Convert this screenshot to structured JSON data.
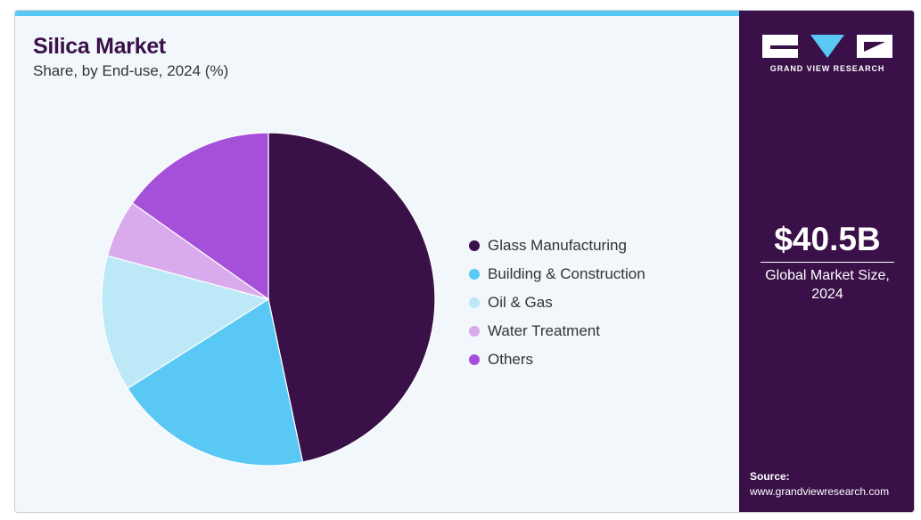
{
  "header": {
    "title": "Silica Market",
    "subtitle": "Share, by End-use, 2024 (%)"
  },
  "chart_data": {
    "type": "pie",
    "title": "Silica Market",
    "subtitle": "Share, by End-use, 2024 (%)",
    "categories": [
      "Glass Manufacturing",
      "Building & Construction",
      "Oil & Gas",
      "Water Treatment",
      "Others"
    ],
    "values": [
      46.7,
      19.3,
      13.2,
      5.6,
      15.2
    ],
    "colors": [
      "#3a1048",
      "#5ac8f5",
      "#bde8f8",
      "#d9aaec",
      "#a550d9"
    ],
    "legend_position": "right"
  },
  "sidebar": {
    "brand_name": "GRAND VIEW RESEARCH",
    "market_size": "$40.5B",
    "market_size_label": "Global Market Size, 2024",
    "source_title": "Source:",
    "source_url": "www.grandviewresearch.com"
  },
  "colors": {
    "brand_dark": "#3a1048",
    "accent": "#5ac8f5",
    "panel_bg": "#f2f7fc"
  }
}
